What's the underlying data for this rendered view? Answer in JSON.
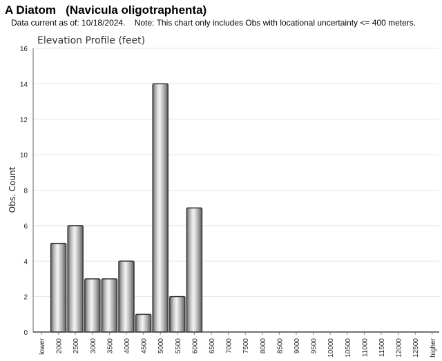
{
  "header": {
    "title": "A Diatom   (Navicula oligotraphenta)",
    "subtitle": "Data current as of: 10/18/2024.    Note: This chart only includes Obs with locational uncertainty <= 400 meters."
  },
  "chart_data": {
    "type": "bar",
    "title": "Elevation Profile (feet)",
    "xlabel": "",
    "ylabel": "Obs. Count",
    "ylim": [
      0,
      16
    ],
    "yticks": [
      0,
      2,
      4,
      6,
      8,
      10,
      12,
      14,
      16
    ],
    "grid": true,
    "categories": [
      "lower",
      "2000",
      "2500",
      "3000",
      "3500",
      "4000",
      "4500",
      "5000",
      "5500",
      "6000",
      "6500",
      "7000",
      "7500",
      "8000",
      "8500",
      "9000",
      "9500",
      "10000",
      "10500",
      "11000",
      "11500",
      "12000",
      "12500",
      "higher"
    ],
    "values": [
      0,
      5,
      6,
      3,
      3,
      4,
      1,
      14,
      2,
      7,
      0,
      0,
      0,
      0,
      0,
      0,
      0,
      0,
      0,
      0,
      0,
      0,
      0,
      0
    ],
    "colors": {
      "bar_fill": "#b0b0b0",
      "bar_edge": "#333333",
      "grid": "#e4e4e4"
    }
  }
}
